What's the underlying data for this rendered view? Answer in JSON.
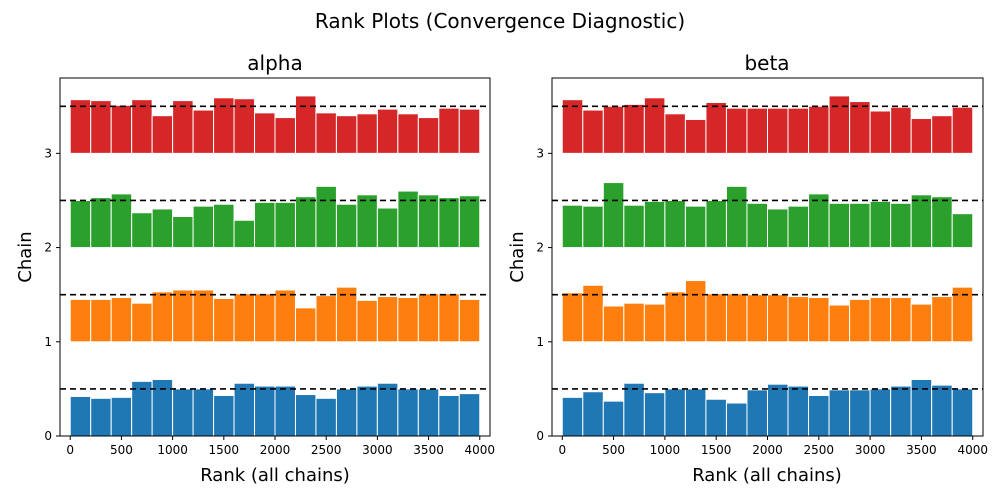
{
  "chart_data": {
    "type": "bar",
    "suptitle": "Rank Plots (Convergence Diagnostic)",
    "xlabel": "Rank (all chains)",
    "ylabel": "Chain",
    "xlim": [
      -100,
      4100
    ],
    "ylim": [
      0,
      3.8
    ],
    "xticks": [
      0,
      500,
      1000,
      1500,
      2000,
      2500,
      3000,
      3500,
      4000
    ],
    "yticks": [
      0,
      1,
      2,
      3
    ],
    "reference_lines": [
      0.5,
      1.5,
      2.5,
      3.5
    ],
    "bin_edges": [
      0,
      200,
      400,
      600,
      800,
      1000,
      1200,
      1400,
      1600,
      1800,
      2000,
      2200,
      2400,
      2600,
      2800,
      3000,
      3200,
      3400,
      3600,
      3800,
      4000
    ],
    "colors": [
      "#1f77b4",
      "#ff7f0e",
      "#2ca02c",
      "#d62728"
    ],
    "panels": [
      {
        "title": "alpha",
        "series": [
          {
            "chain": 0,
            "heights": [
              0.42,
              0.4,
              0.41,
              0.58,
              0.6,
              0.5,
              0.5,
              0.43,
              0.56,
              0.53,
              0.53,
              0.44,
              0.4,
              0.5,
              0.53,
              0.56,
              0.5,
              0.5,
              0.43,
              0.45,
              0.5
            ]
          },
          {
            "chain": 1,
            "heights": [
              0.45,
              0.45,
              0.47,
              0.41,
              0.53,
              0.55,
              0.55,
              0.46,
              0.51,
              0.51,
              0.55,
              0.36,
              0.49,
              0.58,
              0.44,
              0.48,
              0.47,
              0.51,
              0.51,
              0.45,
              0.52
            ]
          },
          {
            "chain": 2,
            "heights": [
              0.5,
              0.53,
              0.57,
              0.37,
              0.41,
              0.33,
              0.44,
              0.46,
              0.29,
              0.48,
              0.48,
              0.54,
              0.65,
              0.46,
              0.56,
              0.42,
              0.6,
              0.56,
              0.53,
              0.55,
              0.4
            ]
          },
          {
            "chain": 3,
            "heights": [
              0.57,
              0.56,
              0.51,
              0.57,
              0.4,
              0.56,
              0.46,
              0.59,
              0.58,
              0.43,
              0.38,
              0.61,
              0.43,
              0.4,
              0.42,
              0.47,
              0.42,
              0.38,
              0.48,
              0.47,
              0.55
            ]
          }
        ]
      },
      {
        "title": "beta",
        "series": [
          {
            "chain": 0,
            "heights": [
              0.41,
              0.47,
              0.37,
              0.56,
              0.46,
              0.5,
              0.5,
              0.39,
              0.35,
              0.49,
              0.55,
              0.53,
              0.43,
              0.49,
              0.49,
              0.5,
              0.53,
              0.6,
              0.54,
              0.5,
              0.58
            ]
          },
          {
            "chain": 1,
            "heights": [
              0.52,
              0.6,
              0.38,
              0.41,
              0.4,
              0.53,
              0.65,
              0.51,
              0.51,
              0.5,
              0.5,
              0.48,
              0.47,
              0.39,
              0.45,
              0.47,
              0.47,
              0.4,
              0.48,
              0.58,
              0.52
            ]
          },
          {
            "chain": 2,
            "heights": [
              0.45,
              0.44,
              0.69,
              0.45,
              0.49,
              0.5,
              0.44,
              0.5,
              0.65,
              0.47,
              0.41,
              0.44,
              0.57,
              0.47,
              0.47,
              0.49,
              0.47,
              0.56,
              0.54,
              0.36,
              0.33
            ]
          },
          {
            "chain": 3,
            "heights": [
              0.57,
              0.46,
              0.5,
              0.52,
              0.59,
              0.42,
              0.36,
              0.54,
              0.48,
              0.48,
              0.48,
              0.48,
              0.5,
              0.61,
              0.55,
              0.45,
              0.49,
              0.37,
              0.4,
              0.49,
              0.52
            ]
          }
        ]
      }
    ]
  }
}
